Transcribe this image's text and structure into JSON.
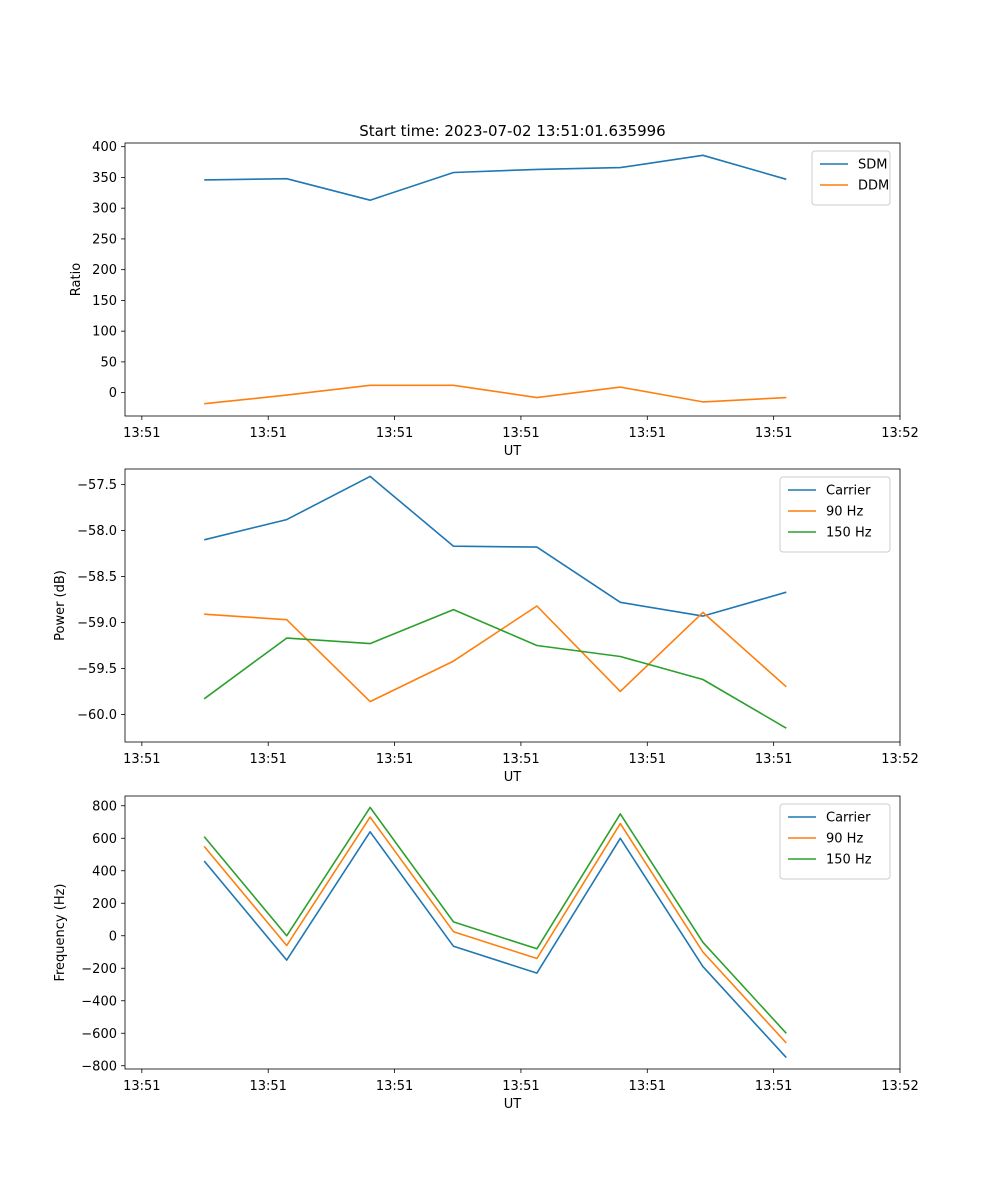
{
  "figure_title": "Start time: 2023-07-02 13:51:01.635996",
  "chart_data": [
    {
      "type": "line",
      "ylabel": "Ratio",
      "xlabel": "UT",
      "xlim": [
        0,
        9.2
      ],
      "ylim": [
        -38,
        406
      ],
      "xticks": [
        0.2,
        1.7,
        3.2,
        4.7,
        6.2,
        7.7,
        9.2
      ],
      "xtick_labels": [
        "13:51",
        "13:51",
        "13:51",
        "13:51",
        "13:51",
        "13:51",
        "13:52"
      ],
      "yticks": [
        0,
        50,
        100,
        150,
        200,
        250,
        300,
        350,
        400
      ],
      "ytick_labels": [
        "0",
        "50",
        "100",
        "150",
        "200",
        "250",
        "300",
        "350",
        "400"
      ],
      "x": [
        0.94,
        1.92,
        2.91,
        3.9,
        4.89,
        5.88,
        6.86,
        7.85
      ],
      "legend": "top-right",
      "series": [
        {
          "name": "SDM",
          "color": "#1f77b4",
          "values": [
            346,
            348,
            313,
            358,
            363,
            366,
            386,
            347
          ]
        },
        {
          "name": "DDM",
          "color": "#ff7f0e",
          "values": [
            -18,
            -4,
            12,
            12,
            -8,
            9,
            -15,
            -8
          ]
        }
      ]
    },
    {
      "type": "line",
      "ylabel": "Power (dB)",
      "xlabel": "UT",
      "xlim": [
        0,
        9.2
      ],
      "ylim": [
        -60.3,
        -57.33
      ],
      "xticks": [
        0.2,
        1.7,
        3.2,
        4.7,
        6.2,
        7.7,
        9.2
      ],
      "xtick_labels": [
        "13:51",
        "13:51",
        "13:51",
        "13:51",
        "13:51",
        "13:51",
        "13:52"
      ],
      "yticks": [
        -60.0,
        -59.5,
        -59.0,
        -58.5,
        -58.0,
        -57.5
      ],
      "ytick_labels": [
        "−60.0",
        "−59.5",
        "−59.0",
        "−58.5",
        "−58.0",
        "−57.5"
      ],
      "x": [
        0.94,
        1.92,
        2.91,
        3.9,
        4.89,
        5.88,
        6.86,
        7.85
      ],
      "legend": "top-right",
      "series": [
        {
          "name": "Carrier",
          "color": "#1f77b4",
          "values": [
            -58.1,
            -57.88,
            -57.41,
            -58.17,
            -58.18,
            -58.78,
            -58.93,
            -58.67
          ]
        },
        {
          "name": "90 Hz",
          "color": "#ff7f0e",
          "values": [
            -58.91,
            -58.97,
            -59.86,
            -59.42,
            -58.82,
            -59.75,
            -58.89,
            -59.7
          ]
        },
        {
          "name": "150 Hz",
          "color": "#2ca02c",
          "values": [
            -59.83,
            -59.17,
            -59.23,
            -58.86,
            -59.25,
            -59.37,
            -59.62,
            -60.15
          ]
        }
      ]
    },
    {
      "type": "line",
      "ylabel": "Frequency (Hz)",
      "xlabel": "UT",
      "xlim": [
        0,
        9.2
      ],
      "ylim": [
        -820,
        860
      ],
      "xticks": [
        0.2,
        1.7,
        3.2,
        4.7,
        6.2,
        7.7,
        9.2
      ],
      "xtick_labels": [
        "13:51",
        "13:51",
        "13:51",
        "13:51",
        "13:51",
        "13:51",
        "13:52"
      ],
      "yticks": [
        -800,
        -600,
        -400,
        -200,
        0,
        200,
        400,
        600,
        800
      ],
      "ytick_labels": [
        "−800",
        "−600",
        "−400",
        "−200",
        "0",
        "200",
        "400",
        "600",
        "800"
      ],
      "x": [
        0.94,
        1.92,
        2.91,
        3.9,
        4.89,
        5.88,
        6.86,
        7.85
      ],
      "legend": "top-right",
      "series": [
        {
          "name": "Carrier",
          "color": "#1f77b4",
          "values": [
            460,
            -150,
            640,
            -65,
            -230,
            600,
            -190,
            -750
          ]
        },
        {
          "name": "90 Hz",
          "color": "#ff7f0e",
          "values": [
            550,
            -60,
            730,
            25,
            -140,
            690,
            -100,
            -660
          ]
        },
        {
          "name": "150 Hz",
          "color": "#2ca02c",
          "values": [
            610,
            0,
            790,
            85,
            -80,
            750,
            -40,
            -600
          ]
        }
      ]
    }
  ]
}
